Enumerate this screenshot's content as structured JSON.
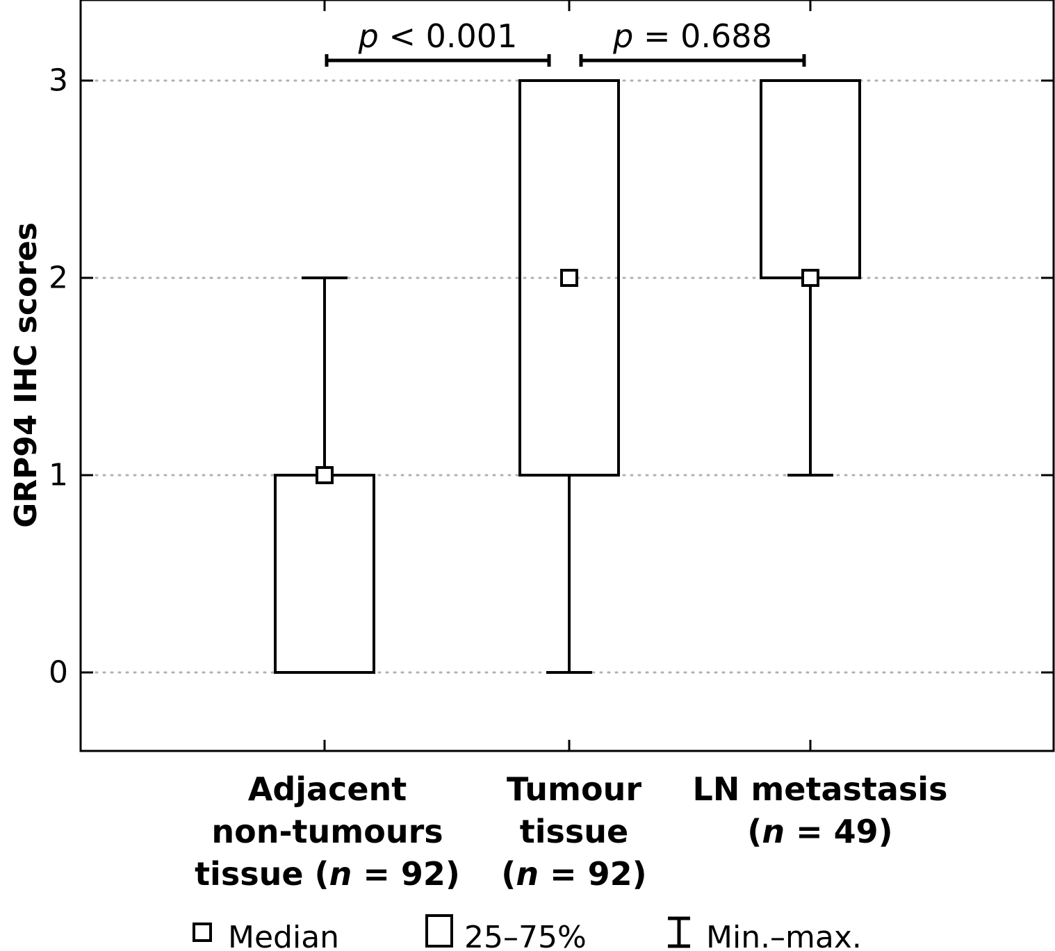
{
  "chart_data": {
    "type": "box",
    "ylabel": "GRP94 IHC scores",
    "ylim": [
      -0.4,
      3.4
    ],
    "yticks": [
      0,
      1,
      2,
      3
    ],
    "grid": "horizontal dotted",
    "categories": [
      {
        "lines": [
          "Adjacent",
          "non-tumours",
          "tissue (n = 92)"
        ],
        "min": 0,
        "q1": 0,
        "median": 1,
        "q3": 1,
        "max": 2
      },
      {
        "lines": [
          "Tumour",
          "tissue",
          "(n = 92)"
        ],
        "min": 0,
        "q1": 1,
        "median": 2,
        "q3": 3,
        "max": 3
      },
      {
        "lines": [
          "LN metastasis",
          "(n = 49)"
        ],
        "min": 1,
        "q1": 2,
        "median": 2,
        "q3": 3,
        "max": 3
      }
    ],
    "comparisons": [
      {
        "from": 0,
        "to": 1,
        "label": "p < 0.001"
      },
      {
        "from": 1,
        "to": 2,
        "label": "p = 0.688"
      }
    ],
    "legend": {
      "placement": "bottom",
      "median": "Median",
      "box": "25–75%",
      "range": "Min.–max."
    }
  }
}
